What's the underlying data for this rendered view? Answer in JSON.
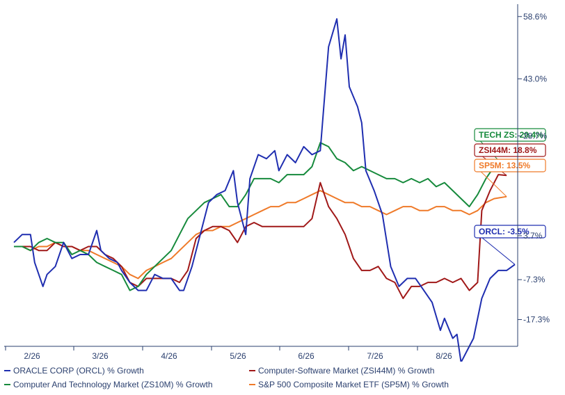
{
  "chart_data": {
    "type": "line",
    "y_axis": {
      "ticks": [
        "58.6%",
        "43.0%",
        "28.7%",
        "3.7%",
        "-7.3%",
        "-17.3%"
      ],
      "tick_values": [
        58.6,
        43.0,
        28.7,
        3.7,
        -7.3,
        -17.3
      ],
      "range": [
        -24,
        61
      ],
      "side": "right",
      "grid": false
    },
    "x_axis": {
      "ticks": [
        "2/26",
        "3/26",
        "4/26",
        "5/26",
        "6/26",
        "7/26",
        "8/26"
      ]
    },
    "series": [
      {
        "name": "ORACLE CORP (ORCL) % Growth",
        "color": "#1f2eb0",
        "end_label": "ORCL: -3.5%",
        "points": [
          [
            0,
            2
          ],
          [
            2,
            4
          ],
          [
            4,
            4
          ],
          [
            5,
            -3
          ],
          [
            7,
            -9
          ],
          [
            8,
            -6
          ],
          [
            10,
            -4
          ],
          [
            12,
            2
          ],
          [
            14,
            -2
          ],
          [
            16,
            -1
          ],
          [
            18,
            -1
          ],
          [
            20,
            5
          ],
          [
            21,
            0
          ],
          [
            23,
            -2
          ],
          [
            25,
            -3
          ],
          [
            26,
            -5
          ],
          [
            28,
            -8
          ],
          [
            30,
            -10
          ],
          [
            32,
            -10
          ],
          [
            34,
            -6
          ],
          [
            36,
            -7
          ],
          [
            38,
            -7
          ],
          [
            40,
            -10
          ],
          [
            41,
            -10
          ],
          [
            43,
            -4
          ],
          [
            45,
            4
          ],
          [
            47,
            12
          ],
          [
            49,
            14
          ],
          [
            51,
            15
          ],
          [
            53,
            20
          ],
          [
            54,
            12
          ],
          [
            56,
            4
          ],
          [
            57,
            18
          ],
          [
            59,
            24
          ],
          [
            61,
            23
          ],
          [
            63,
            25
          ],
          [
            64,
            20
          ],
          [
            66,
            24
          ],
          [
            68,
            22
          ],
          [
            70,
            26
          ],
          [
            72,
            24
          ],
          [
            74,
            25
          ],
          [
            76,
            51
          ],
          [
            78,
            58
          ],
          [
            79,
            48
          ],
          [
            80,
            54
          ],
          [
            81,
            41
          ],
          [
            83,
            36
          ],
          [
            84,
            32
          ],
          [
            85,
            20
          ],
          [
            87,
            15
          ],
          [
            89,
            9
          ],
          [
            91,
            -4
          ],
          [
            93,
            -9
          ],
          [
            95,
            -7
          ],
          [
            97,
            -7
          ],
          [
            99,
            -10
          ],
          [
            101,
            -13
          ],
          [
            103,
            -20
          ],
          [
            104,
            -17
          ],
          [
            106,
            -22
          ],
          [
            107,
            -21
          ],
          [
            108,
            -28
          ],
          [
            110,
            -24
          ],
          [
            111,
            -22
          ],
          [
            113,
            -12
          ],
          [
            115,
            -7
          ],
          [
            117,
            -5
          ],
          [
            119,
            -5
          ],
          [
            121,
            -3.5
          ]
        ]
      },
      {
        "name": "Computer-Software Market (ZSI44M) % Growth",
        "color": "#a01818",
        "end_label": "ZSI44M: 18.8%",
        "points": [
          [
            0,
            1
          ],
          [
            2,
            1
          ],
          [
            4,
            1
          ],
          [
            6,
            0
          ],
          [
            8,
            0
          ],
          [
            10,
            2
          ],
          [
            12,
            1
          ],
          [
            14,
            1
          ],
          [
            16,
            0
          ],
          [
            18,
            1
          ],
          [
            20,
            1
          ],
          [
            22,
            -1
          ],
          [
            24,
            -2
          ],
          [
            26,
            -4
          ],
          [
            28,
            -8
          ],
          [
            30,
            -9
          ],
          [
            32,
            -7
          ],
          [
            34,
            -7
          ],
          [
            36,
            -7
          ],
          [
            38,
            -7
          ],
          [
            40,
            -8
          ],
          [
            42,
            -5
          ],
          [
            44,
            3
          ],
          [
            46,
            5
          ],
          [
            48,
            6
          ],
          [
            50,
            6
          ],
          [
            52,
            5
          ],
          [
            54,
            2
          ],
          [
            56,
            6
          ],
          [
            58,
            7
          ],
          [
            60,
            6
          ],
          [
            62,
            6
          ],
          [
            64,
            6
          ],
          [
            66,
            6
          ],
          [
            68,
            6
          ],
          [
            70,
            6
          ],
          [
            72,
            8
          ],
          [
            74,
            17
          ],
          [
            76,
            11
          ],
          [
            78,
            8
          ],
          [
            80,
            4
          ],
          [
            82,
            -2
          ],
          [
            84,
            -5
          ],
          [
            86,
            -5
          ],
          [
            88,
            -4
          ],
          [
            90,
            -7
          ],
          [
            92,
            -8
          ],
          [
            94,
            -12
          ],
          [
            96,
            -9
          ],
          [
            98,
            -9
          ],
          [
            100,
            -8
          ],
          [
            102,
            -8
          ],
          [
            104,
            -7
          ],
          [
            106,
            -8
          ],
          [
            108,
            -7
          ],
          [
            110,
            -10
          ],
          [
            112,
            -8
          ],
          [
            113,
            10
          ],
          [
            115,
            15
          ],
          [
            117,
            19
          ],
          [
            119,
            18.8
          ]
        ]
      },
      {
        "name": "Computer And Technology Market (ZS10M) % Growth",
        "color": "#168a3c",
        "end_label": "TECH ZS: 20.4%",
        "points": [
          [
            0,
            1
          ],
          [
            2,
            1
          ],
          [
            4,
            0
          ],
          [
            6,
            2
          ],
          [
            8,
            3
          ],
          [
            10,
            2
          ],
          [
            12,
            2
          ],
          [
            14,
            -1
          ],
          [
            16,
            0
          ],
          [
            18,
            -1
          ],
          [
            20,
            -3
          ],
          [
            22,
            -4
          ],
          [
            24,
            -5
          ],
          [
            26,
            -6
          ],
          [
            28,
            -10
          ],
          [
            30,
            -9
          ],
          [
            32,
            -6
          ],
          [
            34,
            -4
          ],
          [
            36,
            -2
          ],
          [
            38,
            0
          ],
          [
            40,
            4
          ],
          [
            42,
            8
          ],
          [
            44,
            10
          ],
          [
            46,
            12
          ],
          [
            48,
            13
          ],
          [
            50,
            14
          ],
          [
            52,
            11
          ],
          [
            54,
            11
          ],
          [
            56,
            14
          ],
          [
            58,
            18
          ],
          [
            60,
            18
          ],
          [
            62,
            18
          ],
          [
            64,
            17
          ],
          [
            66,
            19
          ],
          [
            68,
            19
          ],
          [
            70,
            19
          ],
          [
            72,
            21
          ],
          [
            74,
            27
          ],
          [
            76,
            26
          ],
          [
            78,
            23
          ],
          [
            80,
            22
          ],
          [
            82,
            20
          ],
          [
            84,
            21
          ],
          [
            86,
            20
          ],
          [
            88,
            19
          ],
          [
            90,
            18
          ],
          [
            92,
            18
          ],
          [
            94,
            17
          ],
          [
            96,
            18
          ],
          [
            98,
            17
          ],
          [
            100,
            18
          ],
          [
            102,
            16
          ],
          [
            104,
            17
          ],
          [
            106,
            15
          ],
          [
            108,
            13
          ],
          [
            110,
            11
          ],
          [
            112,
            14
          ],
          [
            114,
            18
          ],
          [
            116,
            21
          ],
          [
            119,
            20.4
          ]
        ]
      },
      {
        "name": "S&P 500 Composite Market ETF (SP5M) % Growth",
        "color": "#ef7a29",
        "end_label": "SP5M: 13.5%",
        "points": [
          [
            0,
            1
          ],
          [
            2,
            1
          ],
          [
            4,
            0
          ],
          [
            6,
            1
          ],
          [
            8,
            1
          ],
          [
            10,
            2
          ],
          [
            12,
            1
          ],
          [
            14,
            1
          ],
          [
            16,
            0
          ],
          [
            18,
            0
          ],
          [
            20,
            -1
          ],
          [
            22,
            -2
          ],
          [
            24,
            -3
          ],
          [
            26,
            -4
          ],
          [
            28,
            -6
          ],
          [
            30,
            -7
          ],
          [
            32,
            -5
          ],
          [
            34,
            -4
          ],
          [
            36,
            -3
          ],
          [
            38,
            -2
          ],
          [
            40,
            0
          ],
          [
            42,
            2
          ],
          [
            44,
            4
          ],
          [
            46,
            5
          ],
          [
            48,
            5
          ],
          [
            50,
            6
          ],
          [
            52,
            6
          ],
          [
            54,
            7
          ],
          [
            56,
            8
          ],
          [
            58,
            9
          ],
          [
            60,
            10
          ],
          [
            62,
            11
          ],
          [
            64,
            11
          ],
          [
            66,
            12
          ],
          [
            68,
            12
          ],
          [
            70,
            13
          ],
          [
            72,
            14
          ],
          [
            74,
            15
          ],
          [
            76,
            14
          ],
          [
            78,
            13
          ],
          [
            80,
            12
          ],
          [
            82,
            12
          ],
          [
            84,
            11
          ],
          [
            86,
            11
          ],
          [
            88,
            10
          ],
          [
            90,
            9
          ],
          [
            92,
            10
          ],
          [
            94,
            11
          ],
          [
            96,
            11
          ],
          [
            98,
            10
          ],
          [
            100,
            10
          ],
          [
            102,
            11
          ],
          [
            104,
            11
          ],
          [
            106,
            10
          ],
          [
            108,
            10
          ],
          [
            110,
            9
          ],
          [
            112,
            10
          ],
          [
            114,
            12
          ],
          [
            116,
            13
          ],
          [
            119,
            13.5
          ]
        ]
      }
    ],
    "legend_position": "bottom"
  },
  "legend": {
    "orcl": "ORACLE CORP (ORCL) % Growth",
    "zsi44m": "Computer-Software Market (ZSI44M) % Growth",
    "zs10m": "Computer And Technology Market (ZS10M) % Growth",
    "sp5m": "S&P 500 Composite Market ETF (SP5M) % Growth"
  }
}
